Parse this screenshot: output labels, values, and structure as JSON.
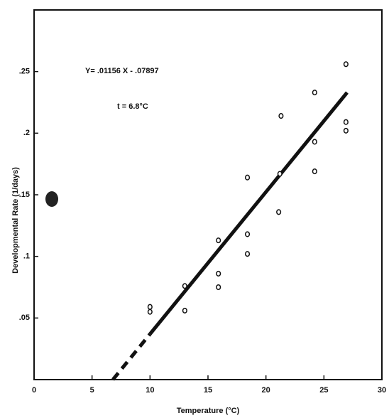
{
  "chart_data": {
    "type": "scatter",
    "x_label": "Temperature (°C)",
    "y_label": "Developmental Rate (1/days)",
    "annotations": [
      "Y= .01156 X - .07897",
      "t = 6.8°C"
    ],
    "x": [
      10,
      10,
      13,
      13,
      15.9,
      15.9,
      15.9,
      18.4,
      18.4,
      18.4,
      21.1,
      21.2,
      21.3,
      24.2,
      24.2,
      24.2,
      26.9,
      26.9,
      26.9
    ],
    "values": [
      0.059,
      0.055,
      0.076,
      0.056,
      0.113,
      0.086,
      0.075,
      0.164,
      0.118,
      0.102,
      0.136,
      0.167,
      0.214,
      0.233,
      0.193,
      0.169,
      0.256,
      0.209,
      0.202
    ],
    "color": "#111111",
    "lines": [
      {
        "x": [
          6.8,
          10
        ],
        "y": [
          0,
          0.037
        ],
        "dashed": true
      },
      {
        "x": [
          10,
          27
        ],
        "y": [
          0.037,
          0.233
        ],
        "dashed": false
      }
    ],
    "xlim": [
      0,
      30
    ],
    "ylim": [
      0,
      0.3
    ],
    "xticks": [
      0,
      5,
      10,
      15,
      20,
      25,
      30
    ],
    "yticks": [
      {
        "value": 0.05,
        "label": ".05"
      },
      {
        "value": 0.1,
        "label": ".1"
      },
      {
        "value": 0.15,
        "label": ".15"
      },
      {
        "value": 0.2,
        "label": ".2"
      },
      {
        "value": 0.25,
        "label": ".25"
      }
    ]
  }
}
